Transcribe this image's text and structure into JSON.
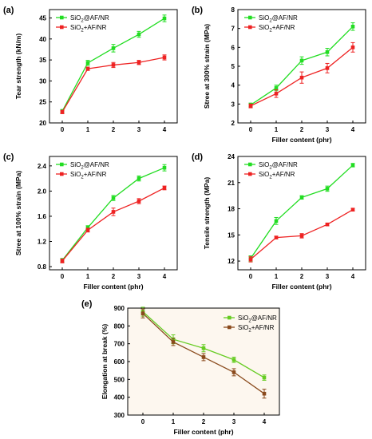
{
  "chart_data": [
    {
      "type": "line",
      "panel_label": "(a)",
      "xlabel": "",
      "ylabel": "Tear strength (kN/m)",
      "x": [
        0,
        1,
        2,
        3,
        4
      ],
      "xticks": [
        "0",
        "1",
        "2",
        "3",
        "4"
      ],
      "xlim": [
        -0.5,
        4.5
      ],
      "ylim": [
        20,
        47
      ],
      "yticks": [
        20,
        25,
        30,
        35,
        40,
        45
      ],
      "legend_position": "top-left",
      "series": [
        {
          "name": "SiO2@AF/NR",
          "name_main": "SiO",
          "name_sub": "2",
          "name_rest": "@AF/NR",
          "color": "#22dd22",
          "values": [
            22.8,
            34.3,
            37.8,
            41.1,
            44.9
          ],
          "errors": [
            0.4,
            0.6,
            0.9,
            0.7,
            0.8
          ]
        },
        {
          "name": "SiO2+AF/NR",
          "name_main": "SiO",
          "name_sub": "2",
          "name_rest": "+AF/NR",
          "color": "#ee2222",
          "values": [
            22.6,
            32.9,
            33.8,
            34.4,
            35.6
          ],
          "errors": [
            0.4,
            0.4,
            0.6,
            0.5,
            0.6
          ]
        }
      ]
    },
    {
      "type": "line",
      "panel_label": "(b)",
      "xlabel": "Filler content (phr)",
      "ylabel": "Stree at 300% strain (MPa)",
      "x": [
        0,
        1,
        2,
        3,
        4
      ],
      "xticks": [
        "0",
        "1",
        "2",
        "3",
        "4"
      ],
      "xlim": [
        -0.5,
        4.5
      ],
      "ylim": [
        2,
        8
      ],
      "yticks": [
        2,
        3,
        4,
        5,
        6,
        7,
        8
      ],
      "legend_position": "top-left",
      "series": [
        {
          "name": "SiO2@AF/NR",
          "name_main": "SiO",
          "name_sub": "2",
          "name_rest": "@AF/NR",
          "color": "#22dd22",
          "values": [
            2.95,
            3.85,
            5.3,
            5.75,
            7.1
          ],
          "errors": [
            0.1,
            0.15,
            0.2,
            0.2,
            0.2
          ]
        },
        {
          "name": "SiO2+AF/NR",
          "name_main": "SiO",
          "name_sub": "2",
          "name_rest": "+AF/NR",
          "color": "#ee2222",
          "values": [
            2.9,
            3.55,
            4.4,
            4.9,
            6.0
          ],
          "errors": [
            0.1,
            0.2,
            0.3,
            0.25,
            0.25
          ]
        }
      ]
    },
    {
      "type": "line",
      "panel_label": "(c)",
      "xlabel": "Filler content (phr)",
      "ylabel": "Stree at 100% strain (MPa)",
      "x": [
        0,
        1,
        2,
        3,
        4
      ],
      "xticks": [
        "0",
        "1",
        "2",
        "3",
        "4"
      ],
      "xlim": [
        -0.5,
        4.5
      ],
      "ylim": [
        0.75,
        2.55
      ],
      "yticks": [
        0.8,
        1.2,
        1.6,
        2.0,
        2.4
      ],
      "ytick_labels": [
        "0.8",
        "1.2",
        "1.6",
        "2.0",
        "2.4"
      ],
      "legend_position": "top-left",
      "series": [
        {
          "name": "SiO2@AF/NR",
          "name_main": "SiO",
          "name_sub": "2",
          "name_rest": "@AF/NR",
          "color": "#22dd22",
          "values": [
            0.9,
            1.42,
            1.89,
            2.2,
            2.37
          ],
          "errors": [
            0.03,
            0.03,
            0.04,
            0.04,
            0.05
          ]
        },
        {
          "name": "SiO2+AF/NR",
          "name_main": "SiO",
          "name_sub": "2",
          "name_rest": "+AF/NR",
          "color": "#ee2222",
          "values": [
            0.89,
            1.38,
            1.67,
            1.84,
            2.05
          ],
          "errors": [
            0.03,
            0.03,
            0.06,
            0.04,
            0.03
          ]
        }
      ]
    },
    {
      "type": "line",
      "panel_label": "(d)",
      "xlabel": "Filler content (phr)",
      "ylabel": "Tensile strength (MPa)",
      "x": [
        0,
        1,
        2,
        3,
        4
      ],
      "xticks": [
        "0",
        "1",
        "2",
        "3",
        "4"
      ],
      "xlim": [
        -0.5,
        4.5
      ],
      "ylim": [
        11,
        24
      ],
      "yticks": [
        12,
        15,
        18,
        21,
        24
      ],
      "legend_position": "top-left",
      "series": [
        {
          "name": "SiO2@AF/NR",
          "name_main": "SiO",
          "name_sub": "2",
          "name_rest": "@AF/NR",
          "color": "#22dd22",
          "values": [
            12.3,
            16.6,
            19.3,
            20.3,
            23.0
          ],
          "errors": [
            0.3,
            0.4,
            0.2,
            0.3,
            0.2
          ]
        },
        {
          "name": "SiO2+AF/NR",
          "name_main": "SiO",
          "name_sub": "2",
          "name_rest": "+AF/NR",
          "color": "#ee2222",
          "values": [
            12.2,
            14.7,
            14.9,
            16.2,
            17.9
          ],
          "errors": [
            0.3,
            0.15,
            0.25,
            0.15,
            0.15
          ]
        }
      ]
    },
    {
      "type": "line",
      "panel_label": "(e)",
      "xlabel": "Filler content (phr)",
      "ylabel": "Elongation at break (%)",
      "x": [
        0,
        1,
        2,
        3,
        4
      ],
      "xticks": [
        "0",
        "1",
        "2",
        "3",
        "4"
      ],
      "xlim": [
        -0.5,
        4.5
      ],
      "ylim": [
        300,
        900
      ],
      "yticks": [
        300,
        400,
        500,
        600,
        700,
        800,
        900
      ],
      "legend_position": "top-right",
      "series": [
        {
          "name": "SiO2@AF/NR",
          "name_main": "SiO",
          "name_sub": "2",
          "name_rest": "@AF/NR",
          "color": "#66cc22",
          "values": [
            880,
            725,
            675,
            610,
            510
          ],
          "errors": [
            25,
            25,
            20,
            15,
            15
          ]
        },
        {
          "name": "SiO2+AF/NR",
          "name_main": "SiO",
          "name_sub": "2",
          "name_rest": "+AF/NR",
          "color": "#8a4a1c",
          "values": [
            870,
            710,
            625,
            540,
            420
          ],
          "errors": [
            25,
            20,
            20,
            20,
            25
          ]
        }
      ]
    }
  ]
}
